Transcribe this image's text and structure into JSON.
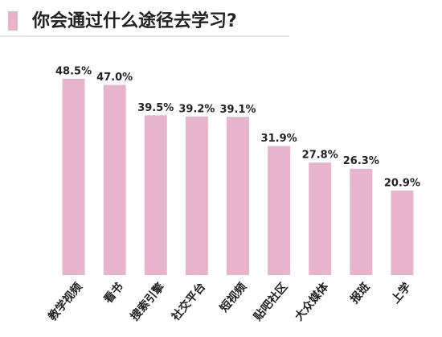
{
  "chart_data": {
    "type": "bar",
    "title": "你会通过什么途径去学习?",
    "categories": [
      "教学视频",
      "看书",
      "搜索引擎",
      "社交平台",
      "短视频",
      "贴吧社区",
      "大众媒体",
      "报班",
      "上学"
    ],
    "values": [
      48.5,
      47.0,
      39.5,
      39.2,
      39.1,
      31.9,
      27.8,
      26.3,
      20.9
    ],
    "value_labels": [
      "48.5%",
      "47.0%",
      "39.5%",
      "39.2%",
      "39.1%",
      "31.9%",
      "27.8%",
      "26.3%",
      "20.9%"
    ],
    "color": "#e8b4cb"
  }
}
